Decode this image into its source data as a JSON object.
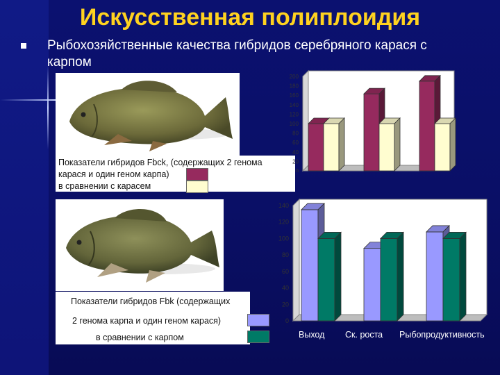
{
  "slide": {
    "title": "Искусственная полиплоидия",
    "subtitle": "Рыбохозяйственные качества гибридов серебряного карася с карпом"
  },
  "legend1": {
    "line1": "Показатели гибридов Fbck, (содержащих 2 генома",
    "line2": "карася и один геном карпа)",
    "line3": " в сравнении с карасем",
    "colors": [
      "#962a5e",
      "#fffdd0"
    ]
  },
  "legend2": {
    "line1": "Показатели гибридов Fbk (содержащих",
    "line2": "2 генома карпа и один геном карася)",
    "line3": "в сравнении с карпом",
    "colors": [
      "#9999ff",
      "#007a66"
    ]
  },
  "chart_data": [
    {
      "type": "bar",
      "categories": [
        "",
        "",
        ""
      ],
      "series": [
        {
          "values": [
            100,
            163,
            190
          ]
        },
        {
          "values": [
            100,
            100,
            100
          ]
        }
      ],
      "ylim": [
        0,
        200
      ],
      "yticks": [
        "0",
        "20",
        "40",
        "60",
        "80",
        "100",
        "120",
        "140",
        "160",
        "180",
        "200"
      ],
      "colors": [
        "#962a5e",
        "#fffdd0"
      ]
    },
    {
      "type": "bar",
      "categories": [
        "Выход",
        "Ск. роста",
        "Рыбопродуктивность"
      ],
      "series": [
        {
          "values": [
            135,
            88,
            108
          ]
        },
        {
          "values": [
            100,
            100,
            100
          ]
        }
      ],
      "ylim": [
        0,
        140
      ],
      "yticks": [
        "0",
        "20",
        "40",
        "60",
        "80",
        "100",
        "120",
        "140"
      ],
      "colors": [
        "#9999ff",
        "#007a66"
      ]
    }
  ]
}
